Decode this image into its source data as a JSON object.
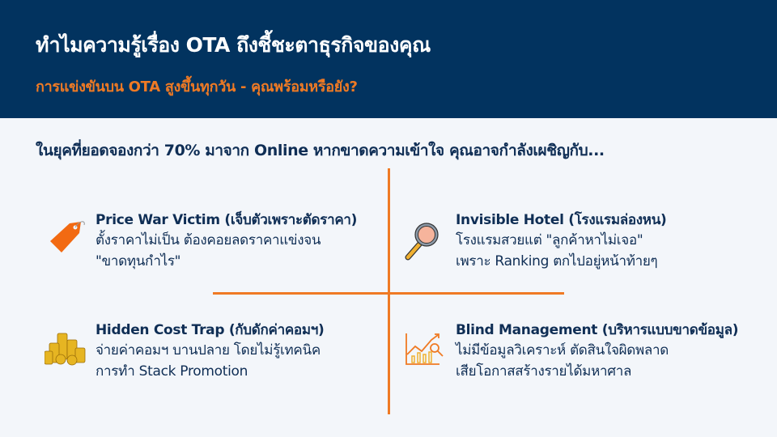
{
  "header": {
    "title": "ทำไมความรู้เรื่อง OTA ถึงชี้ชะตาธุรกิจของคุณ",
    "subtitle": "การแข่งขันบน OTA สูงขึ้นทุกวัน - คุณพร้อมหรือยัง?"
  },
  "intro": "ในยุคที่ยอดจองกว่า 70% มาจาก Online หากขาดความเข้าใจ คุณอาจกำลังเผชิญกับ...",
  "colors": {
    "header_bg": "#02335f",
    "accent": "#ef7a24",
    "text": "#0f2e55",
    "background": "#f3f6fa"
  },
  "cards": [
    {
      "icon": "price-tag-icon",
      "title": "Price War Victim (เจ็บตัวเพราะตัดราคา)",
      "lines": [
        "ตั้งราคาไม่เป็น ต้องคอยลดราคาแข่งจน",
        "\"ขาดทุนกำไร\""
      ]
    },
    {
      "icon": "magnifying-glass-icon",
      "title": "Invisible Hotel (โรงแรมล่องหน)",
      "lines": [
        "โรงแรมสวยแต่ \"ลูกค้าหาไม่เจอ\"",
        "เพราะ Ranking ตกไปอยู่หน้าท้ายๆ"
      ]
    },
    {
      "icon": "coin-stacks-icon",
      "title": "Hidden Cost Trap (กับดักค่าคอมฯ)",
      "lines": [
        "จ่ายค่าคอมฯ บานปลาย โดยไม่รู้เทคนิค",
        "การทำ Stack Promotion"
      ]
    },
    {
      "icon": "chart-analysis-icon",
      "title": "Blind Management (บริหารแบบขาดข้อมูล)",
      "lines": [
        "ไม่มีข้อมูลวิเคราะห์ ตัดสินใจผิดพลาด",
        "เสียโอกาสสร้างรายได้มหาศาล"
      ]
    }
  ]
}
